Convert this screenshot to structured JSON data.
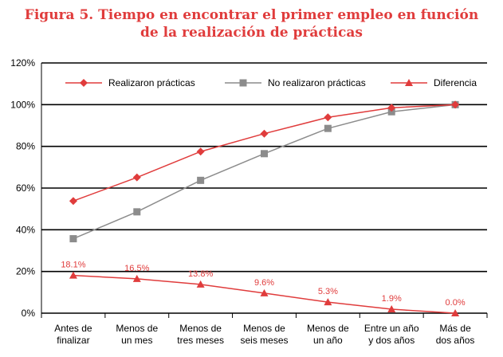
{
  "chart_data": {
    "type": "line",
    "title_line1": "Figura 5. Tiempo en encontrar el primer empleo en función",
    "title_line2": "de la realización de prácticas",
    "categories": [
      [
        "Antes de",
        "finalizar"
      ],
      [
        "Menos de",
        "un mes"
      ],
      [
        "Menos de",
        "tres meses"
      ],
      [
        "Menos de",
        "seis meses"
      ],
      [
        "Menos de",
        "un año"
      ],
      [
        "Entre un año",
        "y dos años"
      ],
      [
        "Más de",
        "dos años"
      ]
    ],
    "y_ticks": [
      "0%",
      "20%",
      "40%",
      "60%",
      "80%",
      "100%",
      "120%"
    ],
    "ylim": [
      0,
      120
    ],
    "xlabel": "",
    "ylabel": "",
    "grid": true,
    "legend_position": "top",
    "series": [
      {
        "name": "Realizaron prácticas",
        "marker": "diamond",
        "color": "#e03c3c",
        "values": [
          53.8,
          65.1,
          77.5,
          86.1,
          93.9,
          98.5,
          100
        ]
      },
      {
        "name": "No realizaron prácticas",
        "marker": "square",
        "color": "#8c8c8c",
        "values": [
          35.7,
          48.6,
          63.7,
          76.5,
          88.6,
          96.6,
          100
        ]
      },
      {
        "name": "Diferencia",
        "marker": "triangle",
        "color": "#e03c3c",
        "values": [
          18.1,
          16.5,
          13.8,
          9.6,
          5.3,
          1.9,
          0.0
        ],
        "labels": [
          "18.1%",
          "16.5%",
          "13.8%",
          "9.6%",
          "5.3%",
          "1.9%",
          "0.0%"
        ]
      }
    ]
  }
}
